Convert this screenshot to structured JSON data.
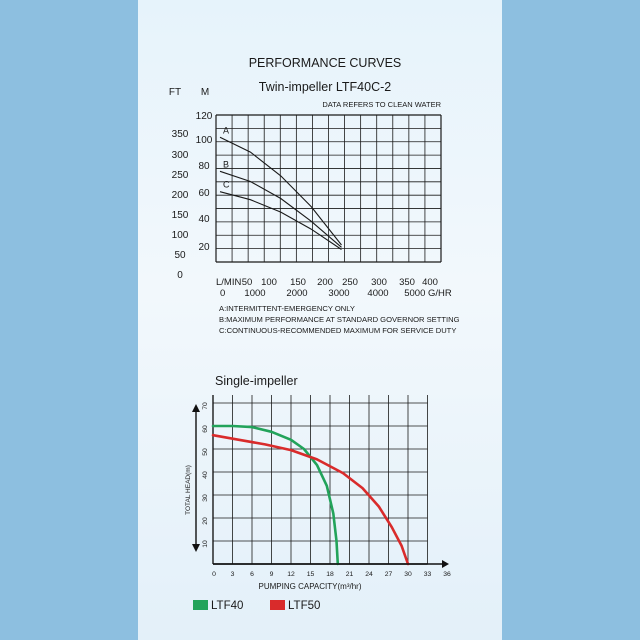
{
  "colors": {
    "background": "#8dbfe0",
    "panel": "#eaf4fb",
    "grid": "#1a1a1a",
    "curve": "#1a1a1a",
    "ltf40": "#22a35a",
    "ltf50": "#d92b2b"
  },
  "chart_data": [
    {
      "type": "line",
      "title": "PERFORMANCE CURVES",
      "subtitle": "Twin-impeller LTF40C-2",
      "note": "DATA REFERS TO CLEAN WATER",
      "ft_unit": "FT",
      "m_unit": "M",
      "ft_ticks": [
        "350",
        "300",
        "250",
        "200",
        "150",
        "100",
        "50",
        "0"
      ],
      "m_ticks": [
        "120",
        "100",
        "80",
        "60",
        "40",
        "20"
      ],
      "x_lmin_unit": "L/MIN",
      "x_lmin_ticks": [
        "50",
        "100",
        "150",
        "200",
        "250",
        "300",
        "350",
        "400"
      ],
      "x_ghr_ticks": [
        "0",
        "1000",
        "2000",
        "3000",
        "4000",
        "5000 G/HR"
      ],
      "x": [
        0,
        75,
        150,
        225,
        300
      ],
      "ylim": [
        0,
        120
      ],
      "xlim": [
        0,
        400
      ],
      "series": [
        {
          "name": "A",
          "values": [
            110,
            97,
            76,
            49,
            15
          ]
        },
        {
          "name": "B",
          "values": [
            80,
            71,
            56,
            36,
            13
          ]
        },
        {
          "name": "C",
          "values": [
            62,
            55,
            44,
            29,
            11
          ]
        }
      ],
      "legend_notes": [
        "A:INTERMITTENT-EMERGENCY ONLY",
        "B:MAXIMUM PERFORMANCE AT STANDARD GOVERNOR SETTING",
        "C:CONTINUOUS-RECOMMENDED MAXIMUM FOR SERVICE DUTY"
      ]
    },
    {
      "type": "line",
      "title": "Single-impeller",
      "xlabel": "PUMPING CAPACITY(m³/hr)",
      "ylabel": "TOTAL HEAD(m)",
      "xlim": [
        0,
        36
      ],
      "ylim": [
        0,
        70
      ],
      "x_ticks": [
        "0",
        "3",
        "6",
        "9",
        "12",
        "15",
        "18",
        "21",
        "24",
        "27",
        "30",
        "33",
        "36"
      ],
      "y_ticks": [
        "10",
        "20",
        "30",
        "40",
        "50",
        "60",
        "70"
      ],
      "series": [
        {
          "name": "LTF40",
          "x": [
            0,
            3,
            6,
            9,
            12,
            14,
            16,
            17.5,
            18.5,
            19,
            19.2
          ],
          "values": [
            60,
            60,
            59.5,
            57.5,
            54,
            50,
            43,
            34,
            22,
            10,
            0
          ]
        },
        {
          "name": "LTF50",
          "x": [
            0,
            4,
            8,
            12,
            16,
            20,
            23,
            25.5,
            27.5,
            29,
            30
          ],
          "values": [
            56,
            54,
            52,
            49.5,
            45.5,
            39.5,
            33,
            25,
            16,
            8,
            0
          ]
        }
      ]
    }
  ]
}
